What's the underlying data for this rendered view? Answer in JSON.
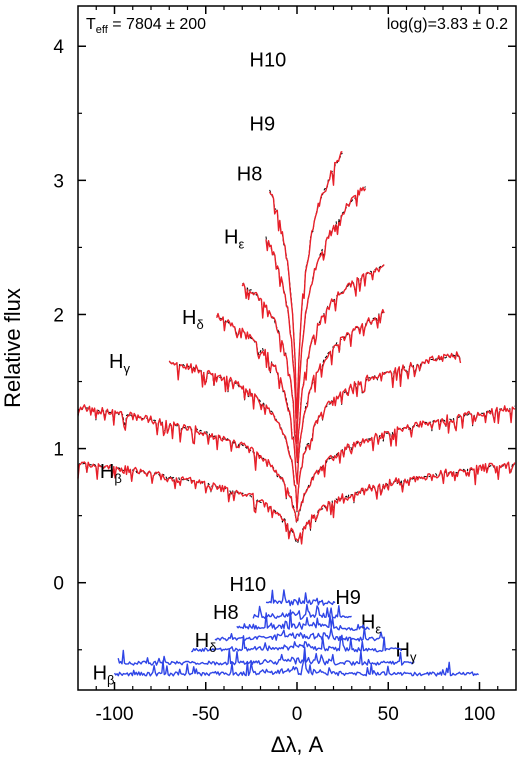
{
  "chart_data": {
    "type": "line",
    "xlabel": "Δλ, A",
    "ylabel": "Relative flux",
    "xlim": [
      -120,
      120
    ],
    "ylim": [
      -0.8,
      4.3
    ],
    "x_ticks": [
      "-100",
      "-50",
      "0",
      "50",
      "100"
    ],
    "x_tick_values": [
      -100,
      -50,
      0,
      50,
      100
    ],
    "y_ticks": [
      "0",
      "1",
      "2",
      "3",
      "4"
    ],
    "y_tick_values": [
      0,
      1,
      2,
      3,
      4
    ],
    "annotations": {
      "teff_label": "T",
      "teff_sub": "eff",
      "teff_value": " =  7804  ± 200",
      "logg": "log(g)=3.83 ± 0.2"
    },
    "colors": {
      "model": "#000000",
      "observed": "#e8202a",
      "residual": "#2f45e6",
      "axis": "#000000"
    },
    "series": [
      {
        "label_main": "H",
        "label_sub": "β",
        "label_x": -108,
        "label_y": 0.78,
        "range": [
          -120,
          120
        ],
        "offset": 0.8,
        "depth": 0.8,
        "width": 22,
        "slope": 0.0013
      },
      {
        "label_main": "H",
        "label_sub": "γ",
        "label_x": -103,
        "label_y": 1.6,
        "range": [
          -120,
          120
        ],
        "offset": 1.2,
        "depth": 1.2,
        "width": 18,
        "slope": 0.0016
      },
      {
        "label_main": "H",
        "label_sub": "δ",
        "label_x": -63,
        "label_y": 1.93,
        "range": [
          -70,
          90
        ],
        "offset": 1.68,
        "depth": 1.68,
        "width": 14,
        "slope": 0.0015
      },
      {
        "label_main": "H",
        "label_sub": "ε",
        "label_x": -40,
        "label_y": 2.53,
        "range": [
          -44,
          48
        ],
        "offset": 2.02,
        "depth": 2.02,
        "width": 10,
        "slope": 0.0035
      },
      {
        "label_main": "H8",
        "label_sub": "",
        "label_x": -33,
        "label_y": 3.0,
        "range": [
          -30,
          48
        ],
        "offset": 2.37,
        "depth": 2.37,
        "width": 8,
        "slope": 0.0035
      },
      {
        "label_main": "H9",
        "label_sub": "",
        "label_x": -26,
        "label_y": 3.37,
        "range": [
          -17,
          38
        ],
        "offset": 2.82,
        "depth": 2.82,
        "width": 7,
        "slope": 0.0095
      },
      {
        "label_main": "H10",
        "label_sub": "",
        "label_x": -26,
        "label_y": 3.85,
        "range": [
          -15,
          25
        ],
        "offset": 3.18,
        "depth": 3.18,
        "width": 6,
        "slope": 0.013
      }
    ],
    "residuals": [
      {
        "label_main": "H",
        "label_sub": "β",
        "label_x": -112,
        "label_y": -0.72,
        "range": [
          -100,
          100
        ],
        "level": -0.68
      },
      {
        "label_main": "H",
        "label_sub": "γ",
        "label_x": 54,
        "label_y": -0.55,
        "range": [
          -98,
          65
        ],
        "level": -0.6
      },
      {
        "label_main": "H",
        "label_sub": "δ",
        "label_x": -56,
        "label_y": -0.48,
        "range": [
          -58,
          58
        ],
        "level": -0.5
      },
      {
        "label_main": "H",
        "label_sub": "ε",
        "label_x": 35,
        "label_y": -0.34,
        "range": [
          -45,
          48
        ],
        "level": -0.42
      },
      {
        "label_main": "H8",
        "label_sub": "",
        "label_x": -46,
        "label_y": -0.27,
        "range": [
          -33,
          40
        ],
        "level": -0.34
      },
      {
        "label_main": "H9",
        "label_sub": "",
        "label_x": 21,
        "label_y": -0.16,
        "range": [
          -24,
          30
        ],
        "level": -0.26
      },
      {
        "label_main": "H10",
        "label_sub": "",
        "label_x": -37,
        "label_y": -0.06,
        "range": [
          -17,
          21
        ],
        "level": -0.16
      }
    ]
  }
}
